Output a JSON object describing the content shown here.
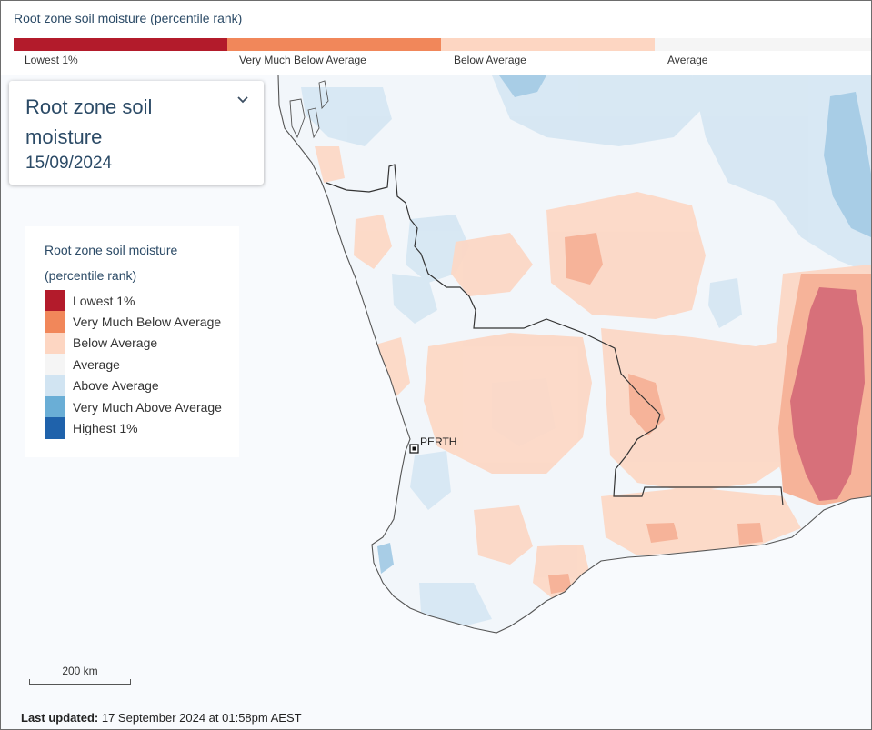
{
  "top_legend": {
    "title": "Root zone soil moisture (percentile rank)",
    "segments": [
      {
        "label": "Lowest 1%",
        "color": "#b31b2b"
      },
      {
        "label": "Very Much Below Average",
        "color": "#f1875a"
      },
      {
        "label": "Below Average",
        "color": "#fdd6c2"
      },
      {
        "label": "Average",
        "color": "#f5f5f5"
      }
    ]
  },
  "selector": {
    "title": "Root zone soil moisture",
    "date": "15/09/2024",
    "icon": "chevron-down-icon"
  },
  "legend": {
    "title": "Root zone soil moisture (percentile rank)",
    "items": [
      {
        "label": "Lowest 1%",
        "color": "#b31b2b"
      },
      {
        "label": "Very Much Below Average",
        "color": "#f1875a"
      },
      {
        "label": "Below Average",
        "color": "#fdd6c2"
      },
      {
        "label": "Average",
        "color": "#f5f5f5"
      },
      {
        "label": "Above Average",
        "color": "#d1e4f2"
      },
      {
        "label": "Very Much Above Average",
        "color": "#6aaed6"
      },
      {
        "label": "Highest 1%",
        "color": "#1f62ab"
      }
    ]
  },
  "map": {
    "city_label": "PERTH",
    "ocean_color": "#f8fafd"
  },
  "scale_bar": {
    "label": "200 km"
  },
  "footer": {
    "prefix": "Last updated:",
    "text": "17 September 2024 at 01:58pm AEST"
  }
}
